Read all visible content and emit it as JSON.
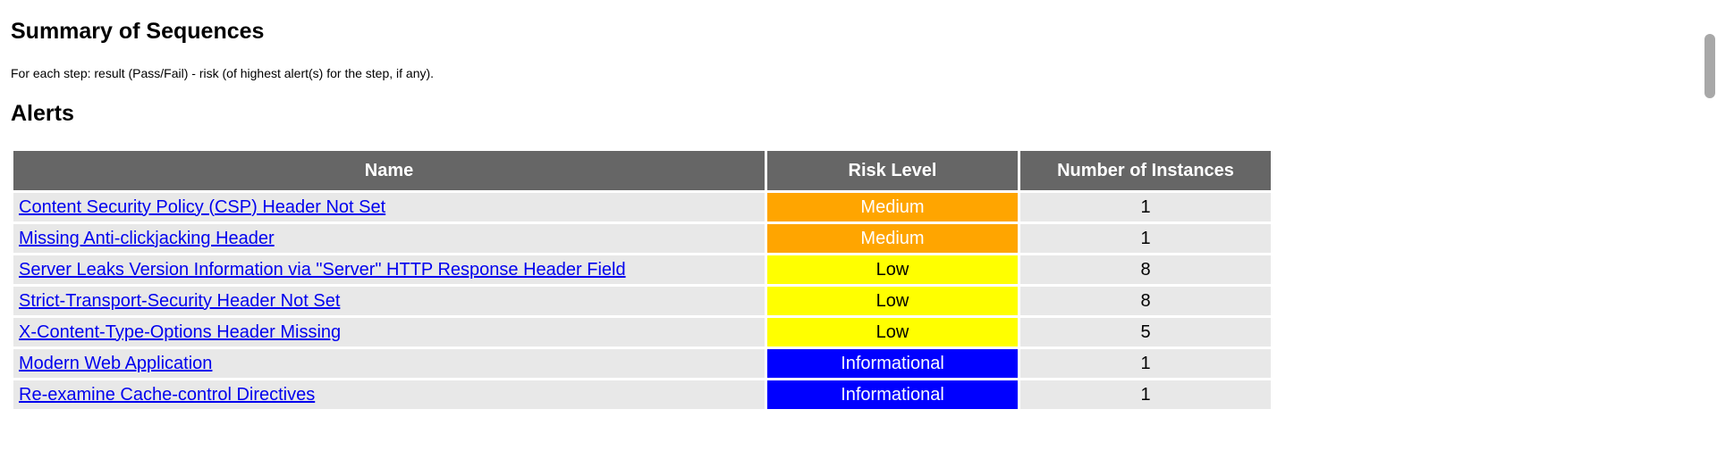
{
  "summary": {
    "title": "Summary of Sequences",
    "description": "For each step: result (Pass/Fail) - risk (of highest alert(s) for the step, if any)."
  },
  "alerts": {
    "heading": "Alerts",
    "headers": {
      "name": "Name",
      "risk": "Risk Level",
      "count": "Number of Instances"
    },
    "rows": [
      {
        "name": "Content Security Policy (CSP) Header Not Set",
        "risk": "Medium",
        "count": "1"
      },
      {
        "name": "Missing Anti-clickjacking Header",
        "risk": "Medium",
        "count": "1"
      },
      {
        "name": "Server Leaks Version Information via \"Server\" HTTP Response Header Field",
        "risk": "Low",
        "count": "8"
      },
      {
        "name": "Strict-Transport-Security Header Not Set",
        "risk": "Low",
        "count": "8"
      },
      {
        "name": "X-Content-Type-Options Header Missing",
        "risk": "Low",
        "count": "5"
      },
      {
        "name": "Modern Web Application",
        "risk": "Informational",
        "count": "1"
      },
      {
        "name": "Re-examine Cache-control Directives",
        "risk": "Informational",
        "count": "1"
      }
    ]
  },
  "colors": {
    "medium_bg": "#ffa500",
    "medium_fg": "#ffffff",
    "low_bg": "#ffff00",
    "low_fg": "#000000",
    "info_bg": "#0000ff",
    "info_fg": "#ffffff",
    "header_bg": "#666666",
    "row_bg": "#e8e8e8",
    "link": "#0000ee"
  }
}
